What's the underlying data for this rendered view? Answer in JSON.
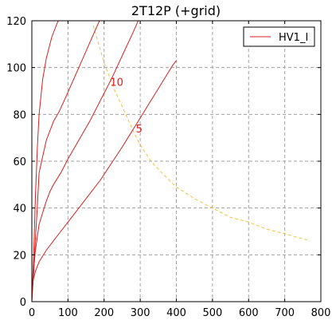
{
  "chart_data": {
    "type": "line",
    "title": "2T12P (+grid)",
    "xlabel": "",
    "ylabel": "",
    "xlim": [
      0,
      800
    ],
    "ylim": [
      0,
      120
    ],
    "xticks": [
      0,
      100,
      200,
      300,
      400,
      500,
      600,
      700,
      800
    ],
    "yticks": [
      0,
      20,
      40,
      60,
      80,
      100,
      120
    ],
    "grid": true,
    "legend": {
      "position": "top-right",
      "entries": [
        "HV1_I"
      ]
    },
    "colors": {
      "curves": "#d62020",
      "load_line": "#f0c040",
      "grid": "#a0a0a0"
    },
    "series": [
      {
        "name": "",
        "label": "",
        "x": [
          0,
          5,
          10,
          15,
          20,
          30,
          40,
          55,
          70,
          80
        ],
        "y": [
          0,
          20,
          45,
          65,
          80,
          95,
          104,
          113,
          119,
          122
        ]
      },
      {
        "name": "",
        "label": "",
        "x": [
          0,
          5,
          10,
          15,
          20,
          30,
          40,
          50,
          60,
          75,
          90,
          110,
          130,
          150,
          170,
          190,
          200
        ],
        "y": [
          0,
          12,
          27,
          40,
          55,
          62,
          69,
          73,
          77,
          81,
          86,
          93,
          100,
          107,
          114,
          121,
          125
        ]
      },
      {
        "name": "",
        "label": "10",
        "x": [
          0,
          10,
          20,
          30,
          40,
          50,
          60,
          80,
          100,
          130,
          160,
          190,
          220,
          250,
          280,
          300
        ],
        "y": [
          5,
          22,
          33,
          38,
          43,
          47,
          50,
          55,
          61,
          69,
          77,
          86,
          95,
          105,
          115,
          122
        ]
      },
      {
        "name": "",
        "label": "5",
        "x": [
          0,
          10,
          20,
          40,
          60,
          80,
          100,
          130,
          160,
          190,
          220,
          250,
          270,
          290,
          310,
          330,
          350,
          370,
          390,
          400
        ],
        "y": [
          7,
          13,
          17,
          22,
          26,
          30,
          34,
          40,
          46,
          52,
          59,
          66,
          71,
          76,
          81,
          86,
          91,
          96,
          101,
          103
        ]
      }
    ],
    "load_line": {
      "name": "",
      "x": [
        170,
        200,
        230,
        260,
        280,
        300,
        330,
        360,
        400,
        450,
        500,
        550,
        600,
        650,
        700,
        770
      ],
      "y": [
        118,
        102,
        90,
        80,
        73,
        67,
        60,
        55,
        49,
        44,
        40,
        36,
        34,
        31,
        29,
        26
      ]
    },
    "curve_labels": [
      {
        "text": "10",
        "x": 235,
        "y": 94
      },
      {
        "text": "5",
        "x": 297,
        "y": 74
      }
    ]
  }
}
